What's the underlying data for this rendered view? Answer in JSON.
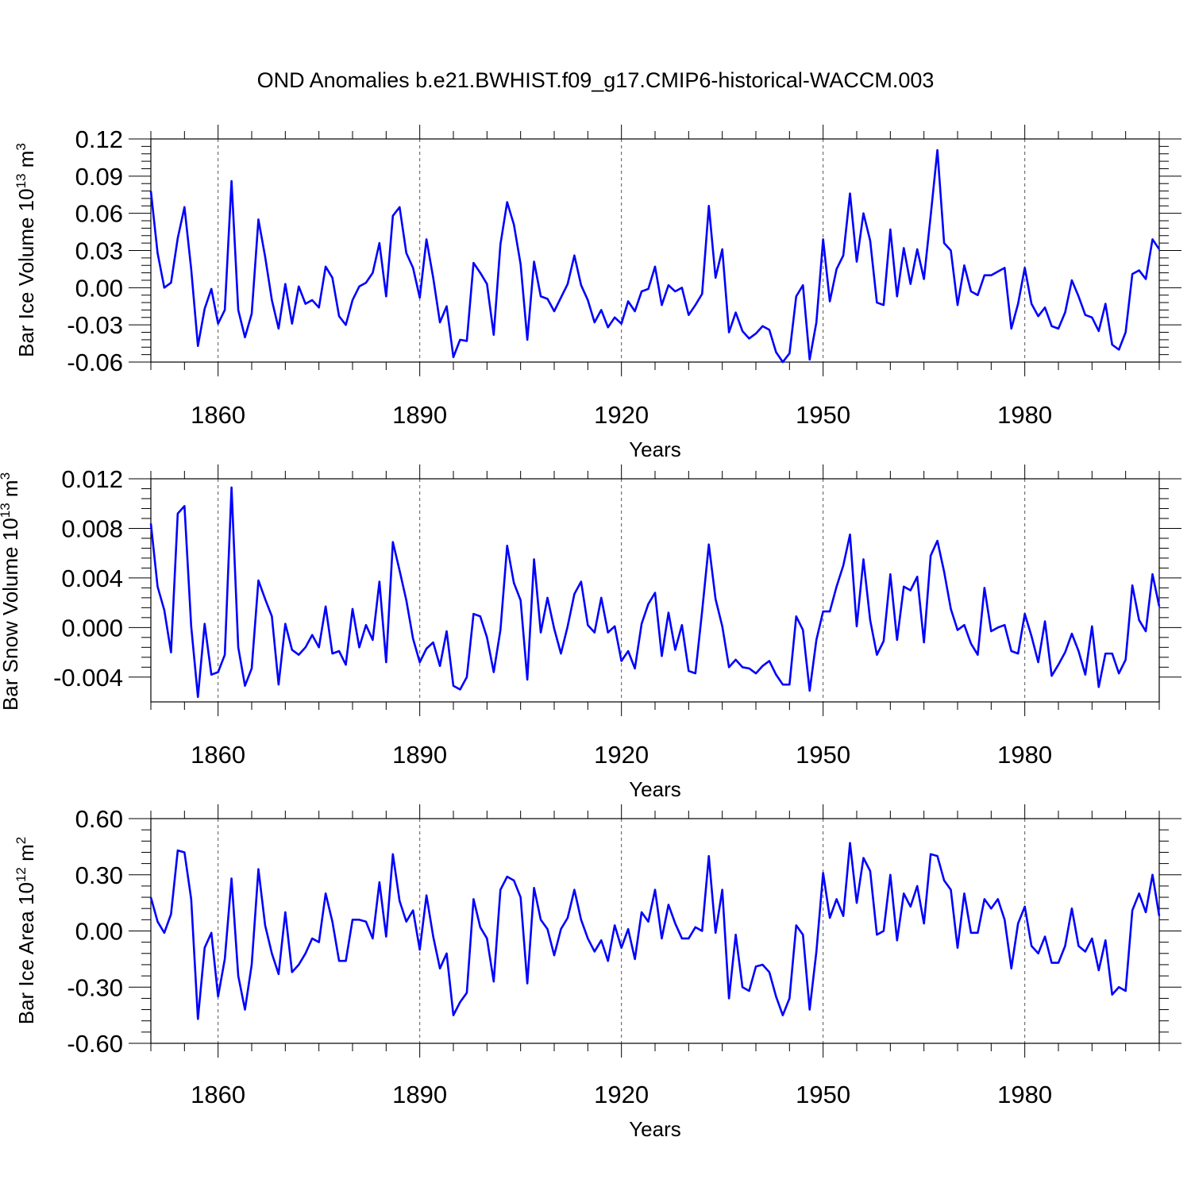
{
  "figure": {
    "title": "OND Anomalies b.e21.BWHIST.f09_g17.CMIP6-historical-WACCM.003",
    "line_color": "#0000ff",
    "grid_color": "#555555"
  },
  "chart_data": [
    {
      "type": "line",
      "title": "OND Anomalies b.e21.BWHIST.f09_g17.CMIP6-historical-WACCM.003",
      "xlabel": "Years",
      "ylabel_main": "Bar Ice Volume 10",
      "ylabel_exp": "13",
      "ylabel_unit": " m",
      "ylabel_unit_exp": "3",
      "xlim": [
        1850,
        2000
      ],
      "ylim": [
        -0.06,
        0.12
      ],
      "xticks": [
        1860,
        1890,
        1920,
        1950,
        1980
      ],
      "xtick_labels": [
        "1860",
        "1890",
        "1920",
        "1950",
        "1980"
      ],
      "yticks": [
        -0.06,
        -0.03,
        0.0,
        0.03,
        0.06,
        0.09,
        0.12
      ],
      "ytick_labels": [
        "-0.06",
        "-0.03",
        "0.00",
        "0.03",
        "0.06",
        "0.09",
        "0.12"
      ],
      "x_start": 1850,
      "x_step": 1,
      "values": [
        0.078,
        0.028,
        0.0,
        0.004,
        0.04,
        0.065,
        0.015,
        -0.047,
        -0.017,
        -0.001,
        -0.029,
        -0.018,
        0.086,
        -0.018,
        -0.04,
        -0.021,
        0.055,
        0.025,
        -0.01,
        -0.033,
        0.003,
        -0.029,
        0.001,
        -0.013,
        -0.01,
        -0.016,
        0.017,
        0.008,
        -0.023,
        -0.03,
        -0.01,
        0.001,
        0.004,
        0.012,
        0.036,
        -0.007,
        0.058,
        0.065,
        0.028,
        0.016,
        -0.008,
        0.039,
        0.008,
        -0.028,
        -0.015,
        -0.056,
        -0.042,
        -0.043,
        0.02,
        0.012,
        0.003,
        -0.038,
        0.035,
        0.069,
        0.051,
        0.019,
        -0.042,
        0.021,
        -0.007,
        -0.009,
        -0.019,
        -0.008,
        0.003,
        0.026,
        0.002,
        -0.01,
        -0.028,
        -0.018,
        -0.032,
        -0.024,
        -0.029,
        -0.011,
        -0.019,
        -0.003,
        -0.001,
        0.017,
        -0.014,
        0.002,
        -0.003,
        0.0,
        -0.022,
        -0.014,
        -0.005,
        0.066,
        0.008,
        0.031,
        -0.036,
        -0.02,
        -0.035,
        -0.041,
        -0.037,
        -0.031,
        -0.034,
        -0.052,
        -0.06,
        -0.053,
        -0.007,
        0.002,
        -0.058,
        -0.028,
        0.039,
        -0.011,
        0.015,
        0.026,
        0.076,
        0.021,
        0.06,
        0.038,
        -0.012,
        -0.014,
        0.047,
        -0.007,
        0.032,
        0.003,
        0.031,
        0.007,
        0.058,
        0.111,
        0.036,
        0.03,
        -0.014,
        0.018,
        -0.003,
        -0.006,
        0.01,
        0.01,
        0.013,
        0.016,
        -0.033,
        -0.013,
        0.016,
        -0.013,
        -0.023,
        -0.016,
        -0.031,
        -0.033,
        -0.02,
        0.006,
        -0.007,
        -0.022,
        -0.024,
        -0.035,
        -0.013,
        -0.046,
        -0.05,
        -0.036,
        0.011,
        0.014,
        0.007,
        0.039,
        0.031
      ]
    },
    {
      "type": "line",
      "xlabel": "Years",
      "ylabel_main": "Bar Snow Volume 10",
      "ylabel_exp": "13",
      "ylabel_unit": " m",
      "ylabel_unit_exp": "3",
      "xlim": [
        1850,
        2000
      ],
      "ylim": [
        -0.006,
        0.012
      ],
      "xticks": [
        1860,
        1890,
        1920,
        1950,
        1980
      ],
      "xtick_labels": [
        "1860",
        "1890",
        "1920",
        "1950",
        "1980"
      ],
      "yticks": [
        -0.004,
        0.0,
        0.004,
        0.008,
        0.012
      ],
      "ytick_labels": [
        "-0.004",
        "0.000",
        "0.004",
        "0.008",
        "0.012"
      ],
      "x_start": 1850,
      "x_step": 1,
      "values": [
        0.0084,
        0.0033,
        0.0014,
        -0.002,
        0.0092,
        0.0098,
        0.0001,
        -0.0056,
        0.0003,
        -0.0038,
        -0.0036,
        -0.0022,
        0.0113,
        -0.0016,
        -0.0047,
        -0.0033,
        0.0038,
        0.0023,
        0.0009,
        -0.0046,
        0.0003,
        -0.0018,
        -0.0022,
        -0.0016,
        -0.0006,
        -0.0016,
        0.0017,
        -0.0021,
        -0.0019,
        -0.003,
        0.0015,
        -0.0016,
        0.0002,
        -0.001,
        0.0037,
        -0.0028,
        0.0069,
        0.0046,
        0.0022,
        -0.0009,
        -0.0028,
        -0.0017,
        -0.0012,
        -0.0031,
        -0.0003,
        -0.0047,
        -0.005,
        -0.004,
        0.0011,
        0.0009,
        -0.0008,
        -0.0036,
        -0.0002,
        0.0066,
        0.0036,
        0.0022,
        -0.0042,
        0.0055,
        -0.0004,
        0.0024,
        -0.0001,
        -0.0021,
        0.0001,
        0.0027,
        0.0037,
        0.0002,
        -0.0004,
        0.0024,
        -0.0004,
        0.0001,
        -0.0027,
        -0.0019,
        -0.0033,
        0.0003,
        0.0019,
        0.0028,
        -0.0023,
        0.0012,
        -0.0018,
        0.0002,
        -0.0035,
        -0.0037,
        0.0013,
        0.0067,
        0.0023,
        0.0001,
        -0.0032,
        -0.0026,
        -0.0032,
        -0.0033,
        -0.0037,
        -0.0031,
        -0.0027,
        -0.0038,
        -0.0046,
        -0.0046,
        0.0009,
        -0.0002,
        -0.0051,
        -0.001,
        0.0013,
        0.0013,
        0.0033,
        0.005,
        0.0075,
        0.0001,
        0.0055,
        0.0006,
        -0.0022,
        -0.0011,
        0.0043,
        -0.001,
        0.0033,
        0.003,
        0.0041,
        -0.0012,
        0.0058,
        0.007,
        0.0045,
        0.0015,
        -0.0002,
        0.0002,
        -0.0013,
        -0.0022,
        0.0032,
        -0.0003,
        0.0,
        0.0002,
        -0.0019,
        -0.0021,
        0.0011,
        -0.0007,
        -0.0028,
        0.0005,
        -0.0039,
        -0.003,
        -0.002,
        -0.0005,
        -0.0019,
        -0.0038,
        0.0001,
        -0.0048,
        -0.0021,
        -0.0021,
        -0.0037,
        -0.0026,
        0.0034,
        0.0006,
        -0.0003,
        0.0043,
        0.0017
      ]
    },
    {
      "type": "line",
      "xlabel": "Years",
      "ylabel_main": "Bar Ice Area 10",
      "ylabel_exp": "12",
      "ylabel_unit": " m",
      "ylabel_unit_exp": "2",
      "xlim": [
        1850,
        2000
      ],
      "ylim": [
        -0.6,
        0.6
      ],
      "xticks": [
        1860,
        1890,
        1920,
        1950,
        1980
      ],
      "xtick_labels": [
        "1860",
        "1890",
        "1920",
        "1950",
        "1980"
      ],
      "yticks": [
        -0.6,
        -0.3,
        0.0,
        0.3,
        0.6
      ],
      "ytick_labels": [
        "-0.60",
        "-0.30",
        "0.00",
        "0.30",
        "0.60"
      ],
      "x_start": 1850,
      "x_step": 1,
      "values": [
        0.18,
        0.05,
        -0.01,
        0.09,
        0.43,
        0.42,
        0.17,
        -0.47,
        -0.09,
        -0.01,
        -0.35,
        -0.15,
        0.28,
        -0.24,
        -0.42,
        -0.18,
        0.33,
        0.03,
        -0.12,
        -0.23,
        0.1,
        -0.22,
        -0.18,
        -0.12,
        -0.04,
        -0.06,
        0.2,
        0.05,
        -0.16,
        -0.16,
        0.06,
        0.06,
        0.05,
        -0.04,
        0.26,
        -0.03,
        0.41,
        0.16,
        0.05,
        0.11,
        -0.1,
        0.19,
        -0.03,
        -0.2,
        -0.12,
        -0.45,
        -0.38,
        -0.33,
        0.17,
        0.02,
        -0.04,
        -0.27,
        0.22,
        0.29,
        0.27,
        0.18,
        -0.28,
        0.23,
        0.06,
        0.01,
        -0.13,
        0.01,
        0.07,
        0.22,
        0.06,
        -0.04,
        -0.11,
        -0.05,
        -0.16,
        0.03,
        -0.09,
        0.01,
        -0.15,
        0.1,
        0.05,
        0.22,
        -0.04,
        0.14,
        0.04,
        -0.04,
        -0.04,
        0.02,
        0.0,
        0.4,
        -0.01,
        0.22,
        -0.36,
        -0.02,
        -0.3,
        -0.32,
        -0.19,
        -0.18,
        -0.22,
        -0.35,
        -0.45,
        -0.36,
        0.03,
        -0.02,
        -0.42,
        -0.11,
        0.31,
        0.07,
        0.17,
        0.08,
        0.47,
        0.15,
        0.39,
        0.32,
        -0.02,
        0.0,
        0.3,
        -0.05,
        0.2,
        0.13,
        0.24,
        0.04,
        0.41,
        0.4,
        0.27,
        0.22,
        -0.09,
        0.2,
        -0.01,
        -0.01,
        0.17,
        0.12,
        0.17,
        0.06,
        -0.2,
        0.04,
        0.13,
        -0.08,
        -0.12,
        -0.03,
        -0.17,
        -0.17,
        -0.08,
        0.12,
        -0.08,
        -0.11,
        -0.04,
        -0.21,
        -0.05,
        -0.34,
        -0.3,
        -0.32,
        0.11,
        0.2,
        0.1,
        0.3,
        0.08
      ]
    }
  ]
}
